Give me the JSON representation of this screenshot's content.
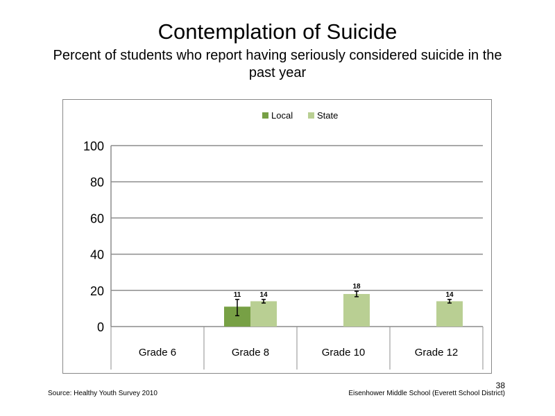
{
  "slide": {
    "title": "Contemplation  of Suicide",
    "subtitle": "Percent of students who report having seriously considered suicide in the past year",
    "source": "Source: Healthy Youth Survey 2010",
    "footer": "Eisenhower Middle  School (Everett School District)",
    "page_number": "38"
  },
  "chart_data": {
    "type": "bar",
    "categories": [
      "Grade 6",
      "Grade 8",
      "Grade 10",
      "Grade 12"
    ],
    "series": [
      {
        "name": "Local",
        "color": "#77a045",
        "values": [
          null,
          11,
          null,
          null
        ],
        "labels": [
          null,
          "11",
          null,
          null
        ],
        "error_low": [
          null,
          6,
          null,
          null
        ],
        "error_high": [
          null,
          15,
          null,
          null
        ]
      },
      {
        "name": "State",
        "color": "#b9cf93",
        "values": [
          null,
          14,
          18,
          14
        ],
        "labels": [
          null,
          "14",
          "18",
          "14"
        ],
        "error_low": [
          null,
          13,
          16.5,
          13
        ],
        "error_high": [
          null,
          15,
          19.5,
          15
        ]
      }
    ],
    "y_ticks": [
      "0",
      "20",
      "40",
      "60",
      "80",
      "100"
    ],
    "ylim": [
      0,
      100
    ],
    "grid": true,
    "legend_position": "top-center"
  }
}
